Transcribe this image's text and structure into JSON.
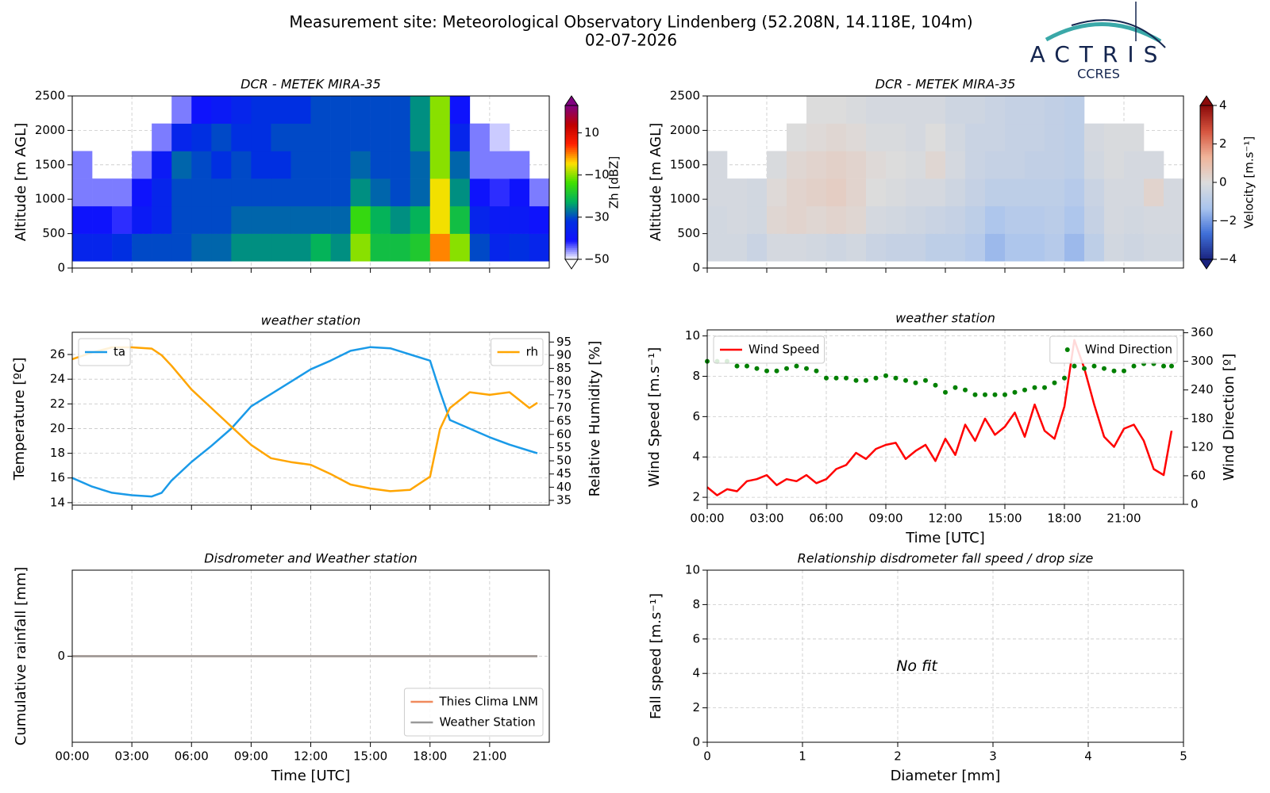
{
  "header": {
    "title": "Measurement site: Meteorological Observatory Lindenberg (52.208N, 14.118E, 104m)",
    "subtitle": "02-07-2026",
    "logo": "ACTRIS",
    "logo_sub": "CCRES"
  },
  "chart_data": [
    {
      "type": "heatmap",
      "title": "DCR - METEK MIRA-35",
      "ylabel": "Altitude [m AGL]",
      "zlabel": "Zh [dBZ]",
      "xlim": [
        0,
        24
      ],
      "xticks": [
        0,
        3,
        6,
        9,
        12,
        15,
        18,
        21
      ],
      "ylim": [
        0,
        2500
      ],
      "yticks": [
        0,
        500,
        1000,
        1500,
        2000,
        2500
      ],
      "grid": true,
      "zlim": [
        -50,
        23
      ],
      "zticks": [
        {
          "value": -50,
          "label": "−50"
        },
        {
          "value": -30,
          "label": "−30"
        },
        {
          "value": -10,
          "label": "−10"
        },
        10
      ],
      "colormap": [
        "#ffffff",
        "#1010ff",
        "#0030e0",
        "#00b060",
        "#40e000",
        "#ffe000",
        "#ff2000",
        "#c00000",
        "#800080"
      ],
      "x": [
        0.5,
        1.5,
        2.5,
        3.5,
        4.5,
        5.5,
        6.5,
        7.5,
        8.5,
        9.5,
        10.5,
        11.5,
        12.5,
        13.5,
        14.5,
        15.5,
        16.5,
        17.5,
        18.5,
        19.5,
        20.5,
        21.5,
        22.5,
        23.5
      ],
      "y": [
        300,
        700,
        1100,
        1500,
        1900,
        2300
      ],
      "z": [
        [
          -35,
          -40,
          -45,
          -45,
          null,
          null
        ],
        [
          -35,
          -40,
          -45,
          null,
          null,
          null
        ],
        [
          -32,
          -42,
          -45,
          null,
          null,
          null
        ],
        [
          -30,
          -38,
          -40,
          -45,
          null,
          null
        ],
        [
          -30,
          -35,
          -35,
          -38,
          -45,
          null
        ],
        [
          -30,
          -30,
          -30,
          -28,
          -35,
          -45
        ],
        [
          -28,
          -30,
          -30,
          -30,
          -32,
          -40
        ],
        [
          -28,
          -30,
          -30,
          -32,
          -30,
          -38
        ],
        [
          -25,
          -28,
          -30,
          -30,
          -32,
          -35
        ],
        [
          -25,
          -28,
          -30,
          -32,
          -32,
          -32
        ],
        [
          -25,
          -28,
          -30,
          -32,
          -30,
          -32
        ],
        [
          -25,
          -28,
          -30,
          -30,
          -30,
          -32
        ],
        [
          -22,
          -28,
          -30,
          -30,
          -30,
          -30
        ],
        [
          -25,
          -28,
          -30,
          -30,
          -30,
          -30
        ],
        [
          -10,
          -15,
          -25,
          -28,
          -30,
          -30
        ],
        [
          -20,
          -22,
          -28,
          -30,
          -30,
          -30
        ],
        [
          -20,
          -25,
          -30,
          -30,
          -30,
          -30
        ],
        [
          -18,
          -22,
          -28,
          -28,
          -25,
          -25
        ],
        [
          0,
          -5,
          -5,
          -10,
          -10,
          -10
        ],
        [
          -10,
          -20,
          -25,
          -28,
          -35,
          -40
        ],
        [
          -30,
          -35,
          -40,
          -45,
          -45,
          null
        ],
        [
          -35,
          -38,
          -42,
          -45,
          -48,
          null
        ],
        [
          -32,
          -38,
          -40,
          -45,
          null,
          null
        ],
        [
          -35,
          -40,
          -45,
          null,
          null,
          null
        ]
      ]
    },
    {
      "type": "heatmap",
      "title": "DCR - METEK MIRA-35",
      "ylabel": "Altitude [m AGL]",
      "zlabel": "Velocity [m.s⁻¹]",
      "xlim": [
        0,
        24
      ],
      "xticks": [
        0,
        3,
        6,
        9,
        12,
        15,
        18,
        21
      ],
      "ylim": [
        0,
        2500
      ],
      "yticks": [
        0,
        500,
        1000,
        1500,
        2000,
        2500
      ],
      "grid": true,
      "zlim": [
        -4,
        4
      ],
      "zticks": [
        {
          "value": -4,
          "label": "−4"
        },
        {
          "value": -2,
          "label": "−2"
        },
        0,
        2,
        4
      ],
      "colormap": [
        "#1a237e",
        "#3f6fd8",
        "#a9c4ee",
        "#dcdcdc",
        "#f0b49a",
        "#d6553f",
        "#8b0a0a"
      ],
      "x": [
        0.5,
        1.5,
        2.5,
        3.5,
        4.5,
        5.5,
        6.5,
        7.5,
        8.5,
        9.5,
        10.5,
        11.5,
        12.5,
        13.5,
        14.5,
        15.5,
        16.5,
        17.5,
        18.5,
        19.5,
        20.5,
        21.5,
        22.5,
        23.5
      ],
      "y": [
        300,
        700,
        1100,
        1500,
        1900,
        2300
      ],
      "z": [
        [
          -0.3,
          -0.3,
          -0.2,
          -0.2,
          null,
          null
        ],
        [
          -0.3,
          -0.2,
          -0.2,
          null,
          null,
          null
        ],
        [
          -0.5,
          -0.3,
          -0.3,
          null,
          null,
          null
        ],
        [
          -0.2,
          0.2,
          0.1,
          -0.1,
          null,
          null
        ],
        [
          -0.2,
          0.3,
          0.3,
          0.2,
          0.0,
          null
        ],
        [
          -0.3,
          0.2,
          0.4,
          0.3,
          0.1,
          0.0
        ],
        [
          -0.4,
          0.3,
          0.5,
          0.4,
          0.2,
          0.0
        ],
        [
          -0.3,
          0.2,
          0.3,
          0.3,
          0.1,
          -0.1
        ],
        [
          -0.5,
          -0.2,
          0.0,
          0.1,
          -0.1,
          -0.2
        ],
        [
          -0.6,
          -0.3,
          -0.1,
          0.0,
          -0.1,
          -0.2
        ],
        [
          -0.6,
          -0.4,
          -0.2,
          -0.1,
          -0.2,
          -0.2
        ],
        [
          -0.8,
          -0.5,
          -0.2,
          0.2,
          0.0,
          -0.2
        ],
        [
          -0.8,
          -0.6,
          -0.4,
          -0.2,
          -0.3,
          -0.4
        ],
        [
          -1.0,
          -0.8,
          -0.6,
          -0.5,
          -0.5,
          -0.4
        ],
        [
          -1.5,
          -1.2,
          -0.8,
          -0.6,
          -0.5,
          -0.5
        ],
        [
          -1.2,
          -1.0,
          -0.8,
          -0.6,
          -0.6,
          -0.6
        ],
        [
          -1.2,
          -1.0,
          -0.8,
          -0.7,
          -0.6,
          -0.6
        ],
        [
          -1.0,
          -0.9,
          -0.8,
          -0.7,
          -0.7,
          -0.7
        ],
        [
          -1.5,
          -1.2,
          -1.0,
          -0.8,
          -0.8,
          -0.8
        ],
        [
          -0.8,
          -0.6,
          -0.5,
          -0.3,
          -0.2,
          null
        ],
        [
          -0.3,
          -0.2,
          -0.2,
          -0.1,
          -0.1,
          null
        ],
        [
          -0.4,
          -0.3,
          -0.2,
          -0.2,
          -0.1,
          null
        ],
        [
          -0.3,
          -0.2,
          0.3,
          -0.2,
          null,
          null
        ],
        [
          -0.3,
          -0.2,
          -0.2,
          null,
          null,
          null
        ]
      ]
    },
    {
      "type": "line",
      "title": "weather station",
      "ylabel": "Temperature [ºC]",
      "y2label": "Relative Humidity [%]",
      "xlim": [
        0,
        24
      ],
      "xticks": [
        0,
        3,
        6,
        9,
        12,
        15,
        18,
        21
      ],
      "ylim": [
        13.8,
        27.8
      ],
      "yticks": [
        14,
        16,
        18,
        20,
        22,
        24,
        26
      ],
      "y2lim": [
        33.2,
        98.7
      ],
      "y2ticks": [
        35,
        40,
        45,
        50,
        55,
        60,
        65,
        70,
        75,
        80,
        85,
        90,
        95
      ],
      "grid": true,
      "x": [
        0,
        1,
        2,
        3,
        4,
        4.5,
        5,
        6,
        7,
        8,
        9,
        10,
        11,
        12,
        13,
        14,
        15,
        16,
        17,
        18,
        18.5,
        19,
        20,
        21,
        22,
        23,
        23.4
      ],
      "series": [
        {
          "name": "ta",
          "color": "#1a9ae8",
          "legend": "upper left",
          "values": [
            16.0,
            15.3,
            14.8,
            14.6,
            14.5,
            14.8,
            15.8,
            17.3,
            18.6,
            20.0,
            21.8,
            22.8,
            23.8,
            24.8,
            25.5,
            26.3,
            26.6,
            26.5,
            26.0,
            25.5,
            23.0,
            20.7,
            20.0,
            19.3,
            18.7,
            18.2,
            18.0
          ]
        },
        {
          "name": "rh",
          "color": "#ffa500",
          "legend": "upper right",
          "axis": "y2",
          "values": [
            88.5,
            91,
            93,
            93,
            92.5,
            90,
            86,
            77,
            70,
            63,
            56,
            51,
            49.5,
            48.5,
            45,
            41,
            39.5,
            38.5,
            39,
            44,
            62,
            70,
            76,
            75,
            76,
            70,
            72
          ]
        }
      ]
    },
    {
      "type": "line",
      "title": "weather station",
      "xlabel": "Time [UTC]",
      "ylabel": "Wind Speed [m.s⁻¹]",
      "y2label": "Wind Direction [º]",
      "xlim": [
        0,
        24
      ],
      "xticks": [
        {
          "value": 0,
          "label": "00:00"
        },
        {
          "value": 3,
          "label": "03:00"
        },
        {
          "value": 6,
          "label": "06:00"
        },
        {
          "value": 9,
          "label": "09:00"
        },
        {
          "value": 12,
          "label": "12:00"
        },
        {
          "value": 15,
          "label": "15:00"
        },
        {
          "value": 18,
          "label": "18:00"
        },
        {
          "value": 21,
          "label": "21:00"
        }
      ],
      "ylim": [
        1.65,
        10.3
      ],
      "yticks": [
        2,
        4,
        6,
        8,
        10
      ],
      "y2lim": [
        0,
        366
      ],
      "y2ticks": [
        0,
        60,
        120,
        180,
        240,
        300,
        360
      ],
      "grid": true,
      "x": [
        0,
        0.5,
        1,
        1.5,
        2,
        2.5,
        3,
        3.5,
        4,
        4.5,
        5,
        5.5,
        6,
        6.5,
        7,
        7.5,
        8,
        8.5,
        9,
        9.5,
        10,
        10.5,
        11,
        11.5,
        12,
        12.5,
        13,
        13.5,
        14,
        14.5,
        15,
        15.5,
        16,
        16.5,
        17,
        17.5,
        18,
        18.5,
        19,
        19.5,
        20,
        20.5,
        21,
        21.5,
        22,
        22.5,
        23,
        23.4
      ],
      "series": [
        {
          "name": "Wind Speed",
          "color": "#ff0000",
          "legend": "upper left",
          "values": [
            2.5,
            2.1,
            2.4,
            2.3,
            2.8,
            2.9,
            3.1,
            2.6,
            2.9,
            2.8,
            3.1,
            2.7,
            2.9,
            3.4,
            3.6,
            4.2,
            3.9,
            4.4,
            4.6,
            4.7,
            3.9,
            4.3,
            4.6,
            3.8,
            4.9,
            4.1,
            5.6,
            4.8,
            5.9,
            5.1,
            5.5,
            6.2,
            5.0,
            6.6,
            5.3,
            4.9,
            6.5,
            9.8,
            8.4,
            6.6,
            5.0,
            4.5,
            5.4,
            5.6,
            4.8,
            3.4,
            3.1,
            5.3
          ]
        },
        {
          "name": "Wind Direction",
          "color": "#008000",
          "legend": "upper right",
          "axis": "y2",
          "mode": "markers",
          "values": [
            300,
            300,
            300,
            290,
            290,
            285,
            280,
            280,
            285,
            290,
            285,
            280,
            265,
            265,
            265,
            260,
            260,
            265,
            270,
            265,
            260,
            255,
            260,
            250,
            235,
            245,
            240,
            230,
            230,
            230,
            230,
            235,
            240,
            245,
            245,
            255,
            265,
            290,
            285,
            290,
            285,
            280,
            280,
            290,
            295,
            295,
            290,
            290
          ]
        }
      ]
    },
    {
      "type": "line",
      "title": "Disdrometer and Weather station",
      "xlabel": "Time [UTC]",
      "ylabel": "Cumulative rainfall [mm]",
      "legend": "lower right",
      "xlim": [
        0,
        24
      ],
      "xticks": [
        {
          "value": 0,
          "label": "00:00"
        },
        {
          "value": 3,
          "label": "03:00"
        },
        {
          "value": 6,
          "label": "06:00"
        },
        {
          "value": 9,
          "label": "09:00"
        },
        {
          "value": 12,
          "label": "12:00"
        },
        {
          "value": 15,
          "label": "15:00"
        },
        {
          "value": 18,
          "label": "18:00"
        },
        {
          "value": 21,
          "label": "21:00"
        }
      ],
      "ylim": [
        -1,
        1
      ],
      "yticks": [
        0
      ],
      "grid": true,
      "x": [
        0,
        23.4
      ],
      "series": [
        {
          "name": "Thies Clima LNM",
          "color": "#f08a5d",
          "values": [
            0,
            0
          ]
        },
        {
          "name": "Weather Station",
          "color": "#999999",
          "values": [
            0,
            0
          ]
        }
      ]
    },
    {
      "type": "scatter",
      "title": "Relationship disdrometer fall speed / drop size",
      "xlabel": "Diameter [mm]",
      "ylabel": "Fall speed [m.s⁻¹]",
      "annotation": "No fit",
      "xlim": [
        0,
        5
      ],
      "xticks": [
        0,
        1,
        2,
        3,
        4,
        5
      ],
      "ylim": [
        0,
        10
      ],
      "yticks": [
        0,
        2,
        4,
        6,
        8,
        10
      ],
      "grid": true
    }
  ]
}
